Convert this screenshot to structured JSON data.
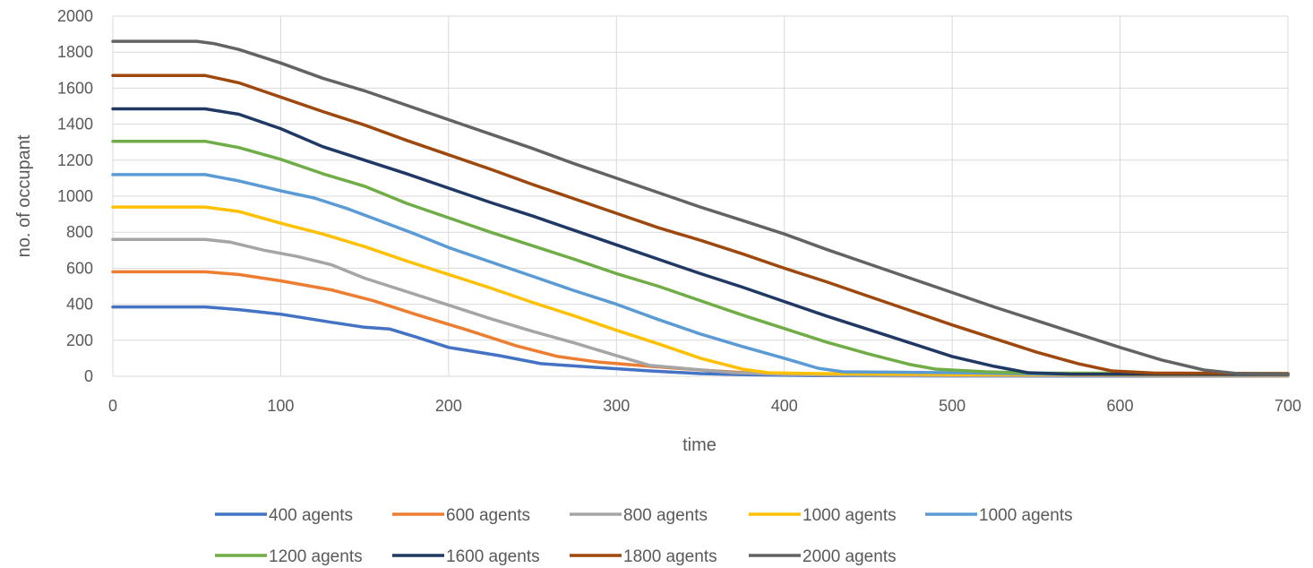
{
  "chart_data": {
    "type": "line",
    "xlabel": "time",
    "ylabel": "no. of occupant",
    "xlim": [
      0,
      700
    ],
    "ylim": [
      0,
      2000
    ],
    "x_ticks": [
      0,
      100,
      200,
      300,
      400,
      500,
      600,
      700
    ],
    "y_ticks": [
      0,
      200,
      400,
      600,
      800,
      1000,
      1200,
      1400,
      1600,
      1800,
      2000
    ],
    "grid": true,
    "legend_position": "bottom",
    "series": [
      {
        "name": "400 agents",
        "color": "#4472C4",
        "points": [
          [
            0,
            385
          ],
          [
            55,
            385
          ],
          [
            75,
            370
          ],
          [
            100,
            345
          ],
          [
            130,
            300
          ],
          [
            150,
            272
          ],
          [
            165,
            262
          ],
          [
            180,
            220
          ],
          [
            200,
            160
          ],
          [
            230,
            115
          ],
          [
            255,
            70
          ],
          [
            290,
            48
          ],
          [
            320,
            30
          ],
          [
            350,
            15
          ],
          [
            380,
            8
          ],
          [
            420,
            4
          ],
          [
            500,
            2
          ],
          [
            700,
            1
          ]
        ]
      },
      {
        "name": "600 agents",
        "color": "#ED7D31",
        "points": [
          [
            0,
            580
          ],
          [
            55,
            580
          ],
          [
            75,
            565
          ],
          [
            100,
            530
          ],
          [
            130,
            480
          ],
          [
            155,
            420
          ],
          [
            180,
            345
          ],
          [
            210,
            260
          ],
          [
            240,
            170
          ],
          [
            265,
            110
          ],
          [
            290,
            78
          ],
          [
            320,
            55
          ],
          [
            350,
            35
          ],
          [
            380,
            18
          ],
          [
            420,
            8
          ],
          [
            500,
            4
          ],
          [
            700,
            2
          ]
        ]
      },
      {
        "name": "800 agents",
        "color": "#A5A5A5",
        "points": [
          [
            0,
            760
          ],
          [
            55,
            760
          ],
          [
            70,
            745
          ],
          [
            90,
            700
          ],
          [
            110,
            665
          ],
          [
            130,
            620
          ],
          [
            150,
            545
          ],
          [
            175,
            470
          ],
          [
            200,
            395
          ],
          [
            225,
            320
          ],
          [
            250,
            250
          ],
          [
            275,
            185
          ],
          [
            300,
            115
          ],
          [
            320,
            60
          ],
          [
            345,
            40
          ],
          [
            370,
            20
          ],
          [
            400,
            10
          ],
          [
            450,
            5
          ],
          [
            700,
            3
          ]
        ]
      },
      {
        "name": "1000 agents",
        "color": "#FFC000",
        "points": [
          [
            0,
            940
          ],
          [
            55,
            940
          ],
          [
            75,
            915
          ],
          [
            100,
            850
          ],
          [
            125,
            790
          ],
          [
            150,
            720
          ],
          [
            175,
            640
          ],
          [
            200,
            565
          ],
          [
            225,
            490
          ],
          [
            250,
            410
          ],
          [
            275,
            335
          ],
          [
            300,
            255
          ],
          [
            325,
            180
          ],
          [
            350,
            100
          ],
          [
            375,
            40
          ],
          [
            390,
            20
          ],
          [
            420,
            15
          ],
          [
            500,
            10
          ],
          [
            700,
            8
          ]
        ]
      },
      {
        "name": "1000 agents",
        "color": "#5B9BD5",
        "points": [
          [
            0,
            1120
          ],
          [
            55,
            1120
          ],
          [
            75,
            1085
          ],
          [
            100,
            1030
          ],
          [
            120,
            990
          ],
          [
            140,
            930
          ],
          [
            160,
            860
          ],
          [
            180,
            790
          ],
          [
            200,
            715
          ],
          [
            225,
            635
          ],
          [
            250,
            555
          ],
          [
            275,
            475
          ],
          [
            300,
            400
          ],
          [
            325,
            315
          ],
          [
            350,
            235
          ],
          [
            375,
            165
          ],
          [
            400,
            100
          ],
          [
            420,
            45
          ],
          [
            435,
            25
          ],
          [
            500,
            20
          ],
          [
            560,
            12
          ],
          [
            700,
            10
          ]
        ]
      },
      {
        "name": "1200 agents",
        "color": "#70AD47",
        "points": [
          [
            0,
            1305
          ],
          [
            55,
            1305
          ],
          [
            75,
            1270
          ],
          [
            100,
            1205
          ],
          [
            125,
            1125
          ],
          [
            150,
            1055
          ],
          [
            175,
            960
          ],
          [
            200,
            880
          ],
          [
            225,
            800
          ],
          [
            250,
            725
          ],
          [
            275,
            650
          ],
          [
            300,
            570
          ],
          [
            325,
            500
          ],
          [
            350,
            420
          ],
          [
            375,
            340
          ],
          [
            400,
            265
          ],
          [
            425,
            190
          ],
          [
            450,
            125
          ],
          [
            475,
            65
          ],
          [
            490,
            40
          ],
          [
            520,
            25
          ],
          [
            550,
            18
          ],
          [
            700,
            15
          ]
        ]
      },
      {
        "name": "1600 agents",
        "color": "#203864",
        "points": [
          [
            0,
            1485
          ],
          [
            55,
            1485
          ],
          [
            75,
            1455
          ],
          [
            100,
            1375
          ],
          [
            125,
            1275
          ],
          [
            150,
            1200
          ],
          [
            175,
            1125
          ],
          [
            200,
            1045
          ],
          [
            225,
            965
          ],
          [
            250,
            890
          ],
          [
            275,
            810
          ],
          [
            300,
            730
          ],
          [
            325,
            650
          ],
          [
            350,
            570
          ],
          [
            375,
            495
          ],
          [
            400,
            415
          ],
          [
            425,
            335
          ],
          [
            450,
            260
          ],
          [
            475,
            185
          ],
          [
            500,
            110
          ],
          [
            525,
            55
          ],
          [
            545,
            20
          ],
          [
            570,
            12
          ],
          [
            700,
            10
          ]
        ]
      },
      {
        "name": "1800 agents",
        "color": "#9E480E",
        "points": [
          [
            0,
            1670
          ],
          [
            55,
            1670
          ],
          [
            75,
            1630
          ],
          [
            100,
            1550
          ],
          [
            125,
            1470
          ],
          [
            150,
            1395
          ],
          [
            175,
            1310
          ],
          [
            200,
            1230
          ],
          [
            225,
            1150
          ],
          [
            250,
            1065
          ],
          [
            275,
            985
          ],
          [
            300,
            905
          ],
          [
            325,
            825
          ],
          [
            350,
            755
          ],
          [
            375,
            680
          ],
          [
            400,
            600
          ],
          [
            425,
            525
          ],
          [
            450,
            445
          ],
          [
            475,
            365
          ],
          [
            500,
            285
          ],
          [
            525,
            210
          ],
          [
            550,
            135
          ],
          [
            575,
            70
          ],
          [
            595,
            30
          ],
          [
            620,
            18
          ],
          [
            700,
            15
          ]
        ]
      },
      {
        "name": "2000 agents",
        "color": "#636363",
        "points": [
          [
            0,
            1860
          ],
          [
            50,
            1860
          ],
          [
            60,
            1848
          ],
          [
            75,
            1815
          ],
          [
            100,
            1740
          ],
          [
            125,
            1655
          ],
          [
            150,
            1585
          ],
          [
            175,
            1505
          ],
          [
            200,
            1425
          ],
          [
            225,
            1345
          ],
          [
            250,
            1265
          ],
          [
            275,
            1180
          ],
          [
            300,
            1100
          ],
          [
            325,
            1020
          ],
          [
            350,
            940
          ],
          [
            375,
            865
          ],
          [
            400,
            790
          ],
          [
            425,
            705
          ],
          [
            450,
            625
          ],
          [
            475,
            545
          ],
          [
            500,
            465
          ],
          [
            525,
            385
          ],
          [
            550,
            310
          ],
          [
            575,
            235
          ],
          [
            600,
            160
          ],
          [
            625,
            90
          ],
          [
            650,
            35
          ],
          [
            670,
            15
          ],
          [
            700,
            12
          ]
        ]
      }
    ]
  }
}
